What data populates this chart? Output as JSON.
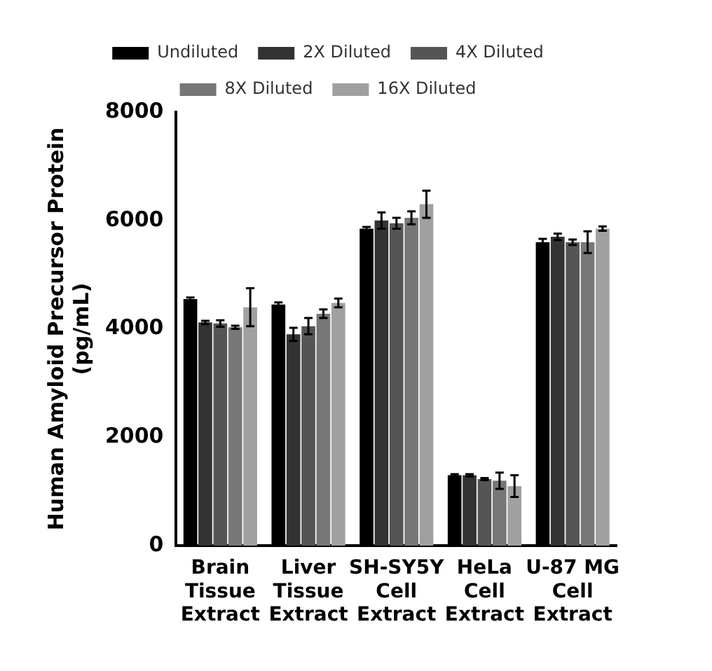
{
  "chart_data": {
    "type": "bar",
    "ylabel": "Human Amyloid Precursor Protein\n(pg/mL)",
    "categories": [
      "Brain\nTissue\nExtract",
      "Liver\nTissue\nExtract",
      "SH-SY5Y\nCell\nExtract",
      "HeLa\nCell\nExtract",
      "U-87 MG\nCell\nExtract"
    ],
    "series": [
      {
        "name": "Undiluted",
        "color": "#000000",
        "values": [
          4550,
          4450,
          5850,
          1300,
          5600
        ],
        "errors": [
          30,
          40,
          30,
          20,
          60
        ]
      },
      {
        "name": "2X Diluted",
        "color": "#333333",
        "values": [
          4120,
          3900,
          6000,
          1300,
          5700
        ],
        "errors": [
          30,
          120,
          150,
          20,
          60
        ]
      },
      {
        "name": "4X Diluted",
        "color": "#555555",
        "values": [
          4100,
          4050,
          5950,
          1230,
          5600
        ],
        "errors": [
          60,
          150,
          100,
          20,
          50
        ]
      },
      {
        "name": "8X Diluted",
        "color": "#777777",
        "values": [
          4030,
          4280,
          6050,
          1200,
          5600
        ],
        "errors": [
          30,
          80,
          120,
          150,
          200
        ]
      },
      {
        "name": "16X Diluted",
        "color": "#a0a0a0",
        "values": [
          4400,
          4480,
          6300,
          1100,
          5850
        ],
        "errors": [
          350,
          80,
          250,
          200,
          40
        ]
      }
    ],
    "ylim": [
      0,
      8000
    ],
    "yticks": [
      0,
      2000,
      4000,
      6000,
      8000
    ],
    "grid": false,
    "legend": "top"
  }
}
